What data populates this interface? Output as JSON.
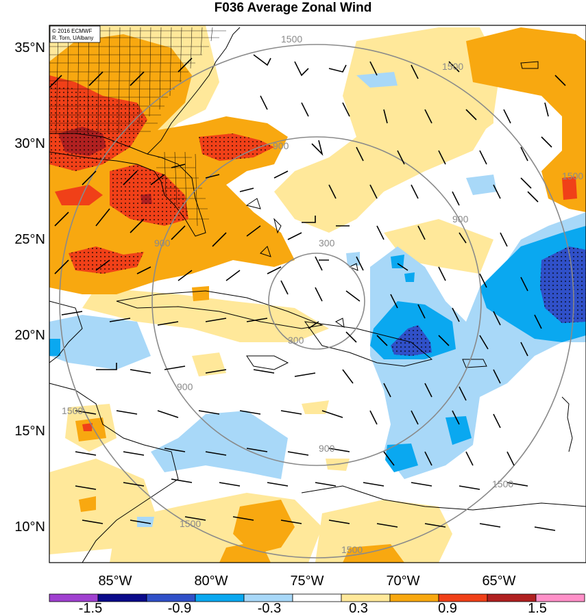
{
  "title": "F036 Average Zonal Wind",
  "credit": {
    "line1": "© 2016 ECMWF",
    "line2": "R. Torn, UAlbany"
  },
  "lat_labels": [
    "35°N",
    "30°N",
    "25°N",
    "20°N",
    "15°N",
    "10°N"
  ],
  "lon_labels": [
    "85°W",
    "80°W",
    "75°W",
    "70°W",
    "65°W"
  ],
  "contour_labels": [
    "300",
    "300",
    "900",
    "900",
    "900",
    "900",
    "900",
    "1500",
    "1500",
    "1500",
    "1500",
    "1500",
    "1500",
    "1500"
  ],
  "colorbar": {
    "colors": [
      "#a040d0",
      "#0a0a8a",
      "#3050c8",
      "#0aa8f0",
      "#a8d8f8",
      "#ffffff",
      "#ffe89a",
      "#f8a810",
      "#f04018",
      "#b02020",
      "#ff90c8"
    ],
    "tick_labels": [
      "-1.5",
      "-0.9",
      "-0.3",
      "0.3",
      "0.9",
      "1.5"
    ]
  },
  "colors": {
    "light_blue": "#a8d8f8",
    "medium_blue": "#0aa8f0",
    "dark_blue": "#3050c8",
    "yellow": "#ffe89a",
    "orange": "#f8a810",
    "red": "#f04018",
    "dark_red": "#b02020",
    "contour_gray": "#8a8a8a"
  }
}
